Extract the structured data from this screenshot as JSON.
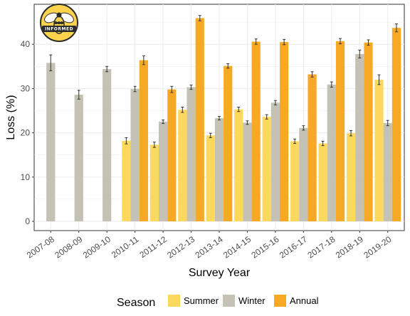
{
  "logo": {
    "text": "INFORMED",
    "badge_text": "BEE",
    "icon": "bee-icon"
  },
  "legend": {
    "title": "Season",
    "position": "bottom"
  },
  "chart_data": {
    "type": "bar",
    "xlabel": "Survey Year",
    "ylabel": "Loss (%)",
    "ylim": [
      0,
      48
    ],
    "yticks": [
      0,
      10,
      20,
      30,
      40
    ],
    "grid": true,
    "categories": [
      "2007-08",
      "2008-09",
      "2009-10",
      "2010-11",
      "2011-12",
      "2012-13",
      "2013-14",
      "2014-15",
      "2015-16",
      "2016-17",
      "2017-18",
      "2018-19",
      "2019-20"
    ],
    "series": [
      {
        "name": "Summer",
        "color": "#fcd95c",
        "values": [
          null,
          null,
          null,
          18.2,
          17.3,
          25.2,
          19.4,
          25.3,
          23.6,
          18.1,
          17.6,
          19.9,
          32.0
        ],
        "errors": [
          null,
          null,
          null,
          0.7,
          0.6,
          0.6,
          0.5,
          0.5,
          0.5,
          0.5,
          0.5,
          0.6,
          1.1
        ]
      },
      {
        "name": "Winter",
        "color": "#c3c2b4",
        "values": [
          35.8,
          28.6,
          34.4,
          29.9,
          22.5,
          30.3,
          23.3,
          22.3,
          26.8,
          21.1,
          30.9,
          37.8,
          22.2
        ],
        "errors": [
          1.8,
          1.0,
          0.6,
          0.6,
          0.4,
          0.5,
          0.4,
          0.4,
          0.5,
          0.5,
          0.6,
          0.9,
          0.6
        ]
      },
      {
        "name": "Annual",
        "color": "#f7a824",
        "values": [
          null,
          null,
          null,
          36.4,
          29.8,
          45.9,
          35.1,
          40.6,
          40.5,
          33.2,
          40.7,
          40.4,
          43.7
        ],
        "errors": [
          null,
          null,
          null,
          1.0,
          0.7,
          0.6,
          0.5,
          0.6,
          0.6,
          0.6,
          0.6,
          0.6,
          0.9
        ]
      }
    ]
  }
}
